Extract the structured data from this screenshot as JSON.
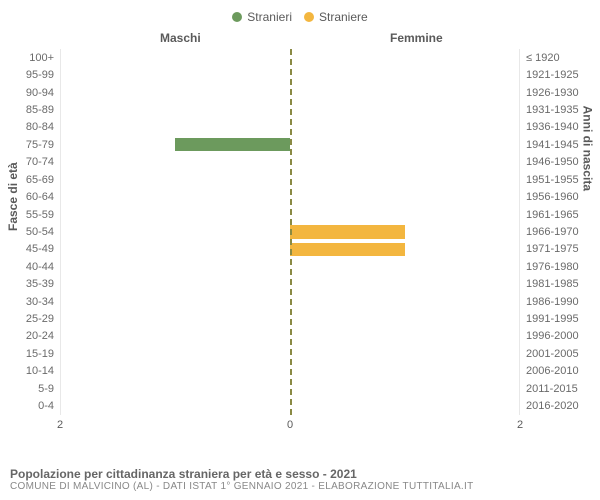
{
  "legend": [
    {
      "label": "Stranieri",
      "color": "#6c9a5d"
    },
    {
      "label": "Straniere",
      "color": "#f3b63f"
    }
  ],
  "columns": {
    "left": "Maschi",
    "right": "Femmine"
  },
  "axis_labels": {
    "left": "Fasce di età",
    "right": "Anni di nascita"
  },
  "xaxis": {
    "min": 0,
    "max": 2,
    "ticks": [
      2,
      0,
      2
    ]
  },
  "grid_color": "#e8e8e8",
  "center_line_color": "#8a8a44",
  "background_color": "#ffffff",
  "row_height": 17.4,
  "bar_left_color": "#6c9a5d",
  "bar_right_color": "#f3b63f",
  "rows": [
    {
      "age": "100+",
      "birth": "≤ 1920",
      "m": 0,
      "f": 0
    },
    {
      "age": "95-99",
      "birth": "1921-1925",
      "m": 0,
      "f": 0
    },
    {
      "age": "90-94",
      "birth": "1926-1930",
      "m": 0,
      "f": 0
    },
    {
      "age": "85-89",
      "birth": "1931-1935",
      "m": 0,
      "f": 0
    },
    {
      "age": "80-84",
      "birth": "1936-1940",
      "m": 0,
      "f": 0
    },
    {
      "age": "75-79",
      "birth": "1941-1945",
      "m": 1,
      "f": 0
    },
    {
      "age": "70-74",
      "birth": "1946-1950",
      "m": 0,
      "f": 0
    },
    {
      "age": "65-69",
      "birth": "1951-1955",
      "m": 0,
      "f": 0
    },
    {
      "age": "60-64",
      "birth": "1956-1960",
      "m": 0,
      "f": 0
    },
    {
      "age": "55-59",
      "birth": "1961-1965",
      "m": 0,
      "f": 0
    },
    {
      "age": "50-54",
      "birth": "1966-1970",
      "m": 0,
      "f": 1
    },
    {
      "age": "45-49",
      "birth": "1971-1975",
      "m": 0,
      "f": 1
    },
    {
      "age": "40-44",
      "birth": "1976-1980",
      "m": 0,
      "f": 0
    },
    {
      "age": "35-39",
      "birth": "1981-1985",
      "m": 0,
      "f": 0
    },
    {
      "age": "30-34",
      "birth": "1986-1990",
      "m": 0,
      "f": 0
    },
    {
      "age": "25-29",
      "birth": "1991-1995",
      "m": 0,
      "f": 0
    },
    {
      "age": "20-24",
      "birth": "1996-2000",
      "m": 0,
      "f": 0
    },
    {
      "age": "15-19",
      "birth": "2001-2005",
      "m": 0,
      "f": 0
    },
    {
      "age": "10-14",
      "birth": "2006-2010",
      "m": 0,
      "f": 0
    },
    {
      "age": "5-9",
      "birth": "2011-2015",
      "m": 0,
      "f": 0
    },
    {
      "age": "0-4",
      "birth": "2016-2020",
      "m": 0,
      "f": 0
    }
  ],
  "footer": {
    "title": "Popolazione per cittadinanza straniera per età e sesso - 2021",
    "sub": "COMUNE DI MALVICINO (AL) - Dati ISTAT 1° gennaio 2021 - Elaborazione TUTTITALIA.IT"
  }
}
